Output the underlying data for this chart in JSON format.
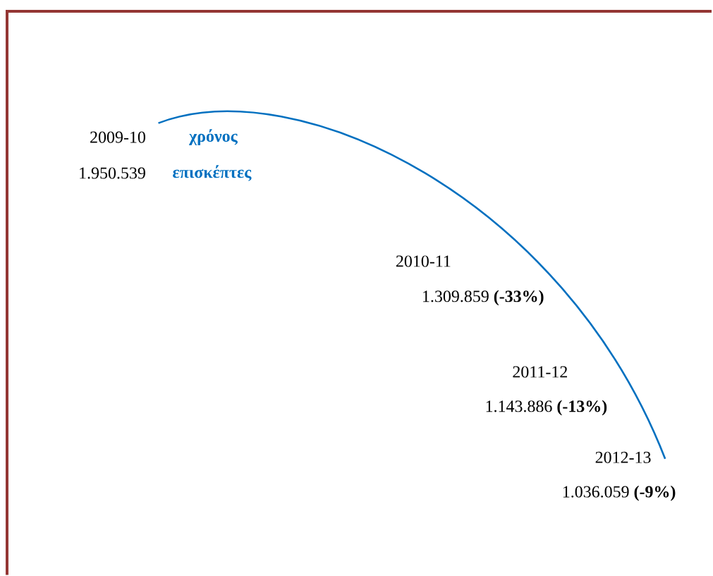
{
  "chart_data": {
    "type": "other",
    "categories": [
      "2009-10",
      "2010-11",
      "2011-12",
      "2012-13"
    ],
    "values": [
      1950539,
      1309859,
      1143886,
      1036059
    ],
    "value_labels": [
      "1.950.539",
      "1.309.859 **(-33%)**",
      "1.143.886 **(-13%)**",
      "1.036.059 **(-9%)**"
    ],
    "annotations": [
      "χρόνος",
      "επισκέπτες"
    ],
    "color": "#0070c0"
  }
}
